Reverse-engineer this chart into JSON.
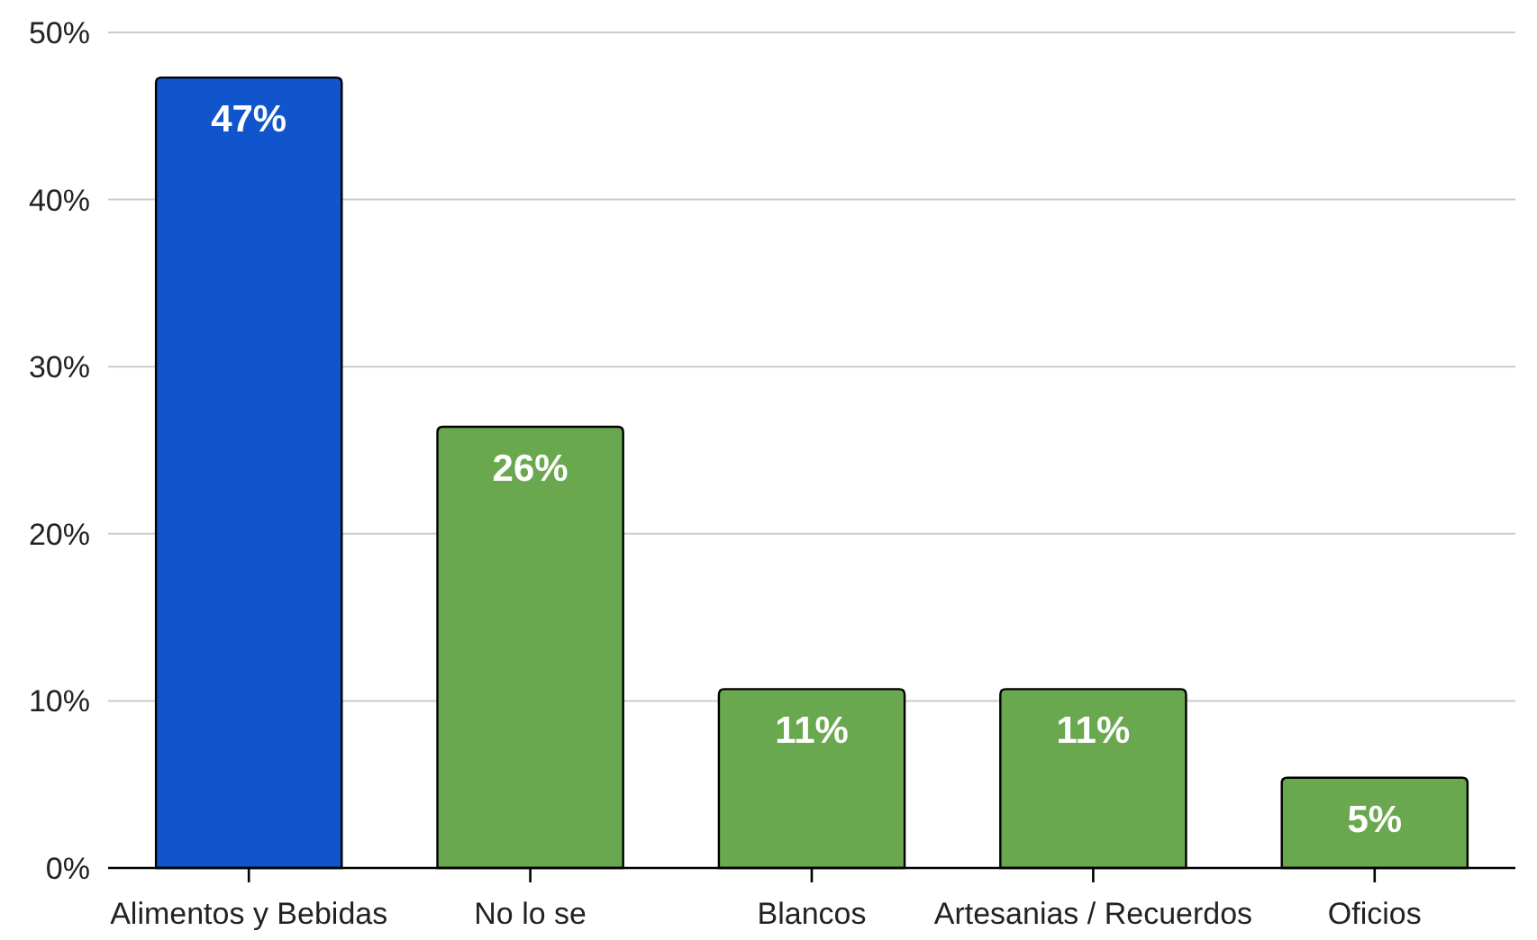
{
  "chart_data": {
    "type": "bar",
    "categories": [
      "Alimentos y Bebidas",
      "No lo se",
      "Blancos",
      "Artesanias / Recuerdos",
      "Oficios"
    ],
    "values": [
      47.3,
      26.4,
      10.7,
      10.7,
      5.4
    ],
    "colors": [
      "#1155cc",
      "#6aa84f",
      "#6aa84f",
      "#6aa84f",
      "#6aa84f"
    ],
    "value_labels": [
      "47%",
      "26%",
      "11%",
      "11%",
      "5%"
    ],
    "ylim": [
      0,
      50
    ],
    "yticks": [
      {
        "value": 0,
        "label": "0%"
      },
      {
        "value": 10,
        "label": "10%"
      },
      {
        "value": 20,
        "label": "20%"
      },
      {
        "value": 30,
        "label": "30%"
      },
      {
        "value": 40,
        "label": "40%"
      },
      {
        "value": 50,
        "label": "50%"
      }
    ],
    "grid": "y"
  }
}
